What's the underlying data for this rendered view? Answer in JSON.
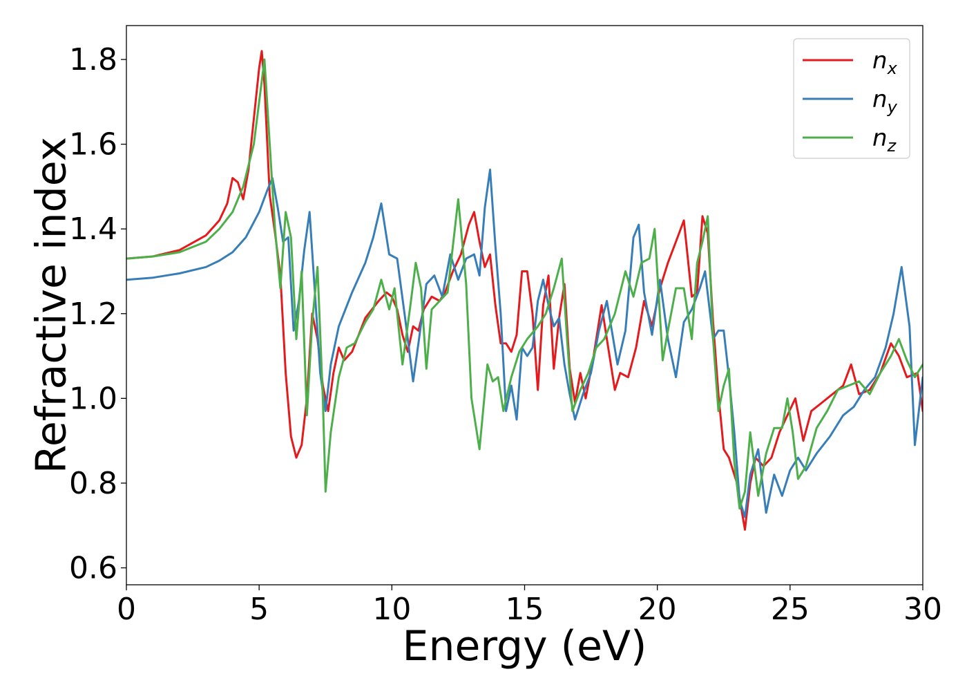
{
  "chart_data": {
    "type": "line",
    "title": "",
    "xlabel": "Energy (eV)",
    "ylabel": "Refractive index",
    "xlim": [
      0,
      30
    ],
    "ylim": [
      0.56,
      1.88
    ],
    "xticks": [
      0,
      5,
      10,
      15,
      20,
      25,
      30
    ],
    "yticks": [
      0.6,
      0.8,
      1.0,
      1.2,
      1.4,
      1.6,
      1.8
    ],
    "xtick_labels": [
      "0",
      "5",
      "10",
      "15",
      "20",
      "25",
      "30"
    ],
    "ytick_labels": [
      "0.6",
      "0.8",
      "1.0",
      "1.2",
      "1.4",
      "1.6",
      "1.8"
    ],
    "grid": false,
    "legend_position": "top-right",
    "series": [
      {
        "name_base": "n",
        "name_sub": "x",
        "color": "#e41a1c",
        "points": [
          [
            0,
            1.33
          ],
          [
            1,
            1.335
          ],
          [
            2,
            1.35
          ],
          [
            3,
            1.385
          ],
          [
            3.5,
            1.42
          ],
          [
            3.8,
            1.46
          ],
          [
            4.0,
            1.52
          ],
          [
            4.2,
            1.51
          ],
          [
            4.4,
            1.47
          ],
          [
            4.6,
            1.54
          ],
          [
            4.8,
            1.66
          ],
          [
            5.0,
            1.78
          ],
          [
            5.1,
            1.82
          ],
          [
            5.2,
            1.74
          ],
          [
            5.4,
            1.48
          ],
          [
            5.6,
            1.39
          ],
          [
            5.8,
            1.29
          ],
          [
            6.0,
            1.06
          ],
          [
            6.2,
            0.91
          ],
          [
            6.4,
            0.86
          ],
          [
            6.6,
            0.89
          ],
          [
            6.8,
            1.0
          ],
          [
            7.0,
            1.2
          ],
          [
            7.2,
            1.14
          ],
          [
            7.4,
            1.03
          ],
          [
            7.6,
            0.97
          ],
          [
            7.8,
            1.06
          ],
          [
            8.0,
            1.12
          ],
          [
            8.2,
            1.09
          ],
          [
            8.5,
            1.11
          ],
          [
            9.0,
            1.19
          ],
          [
            9.5,
            1.23
          ],
          [
            9.8,
            1.25
          ],
          [
            10.0,
            1.24
          ],
          [
            10.2,
            1.21
          ],
          [
            10.4,
            1.15
          ],
          [
            10.6,
            1.11
          ],
          [
            10.8,
            1.17
          ],
          [
            11.0,
            1.16
          ],
          [
            11.2,
            1.21
          ],
          [
            11.5,
            1.24
          ],
          [
            11.8,
            1.23
          ],
          [
            12.0,
            1.25
          ],
          [
            12.3,
            1.3
          ],
          [
            12.6,
            1.34
          ],
          [
            12.9,
            1.41
          ],
          [
            13.1,
            1.44
          ],
          [
            13.3,
            1.37
          ],
          [
            13.5,
            1.31
          ],
          [
            13.7,
            1.34
          ],
          [
            13.9,
            1.22
          ],
          [
            14.1,
            1.13
          ],
          [
            14.3,
            1.13
          ],
          [
            14.5,
            1.11
          ],
          [
            14.7,
            1.15
          ],
          [
            14.9,
            1.3
          ],
          [
            15.1,
            1.3
          ],
          [
            15.3,
            1.2
          ],
          [
            15.5,
            1.02
          ],
          [
            15.7,
            1.22
          ],
          [
            15.9,
            1.29
          ],
          [
            16.1,
            1.07
          ],
          [
            16.3,
            1.19
          ],
          [
            16.5,
            1.27
          ],
          [
            16.7,
            1.07
          ],
          [
            16.9,
            0.99
          ],
          [
            17.1,
            1.06
          ],
          [
            17.3,
            1.0
          ],
          [
            17.6,
            1.1
          ],
          [
            17.9,
            1.22
          ],
          [
            18.1,
            1.14
          ],
          [
            18.4,
            1.02
          ],
          [
            18.6,
            1.06
          ],
          [
            18.9,
            1.05
          ],
          [
            19.2,
            1.12
          ],
          [
            19.5,
            1.23
          ],
          [
            19.8,
            1.17
          ],
          [
            20.1,
            1.26
          ],
          [
            20.4,
            1.32
          ],
          [
            20.7,
            1.37
          ],
          [
            21.0,
            1.42
          ],
          [
            21.3,
            1.24
          ],
          [
            21.5,
            1.25
          ],
          [
            21.7,
            1.43
          ],
          [
            21.9,
            1.39
          ],
          [
            22.1,
            1.18
          ],
          [
            22.3,
            1.01
          ],
          [
            22.5,
            0.88
          ],
          [
            22.7,
            0.86
          ],
          [
            23.0,
            0.8
          ],
          [
            23.3,
            0.69
          ],
          [
            23.5,
            0.8
          ],
          [
            23.7,
            0.86
          ],
          [
            24.0,
            0.84
          ],
          [
            24.3,
            0.86
          ],
          [
            24.6,
            0.92
          ],
          [
            24.9,
            0.96
          ],
          [
            25.2,
            1.0
          ],
          [
            25.5,
            0.9
          ],
          [
            25.8,
            0.97
          ],
          [
            26.2,
            0.99
          ],
          [
            26.6,
            1.01
          ],
          [
            27.0,
            1.03
          ],
          [
            27.3,
            1.08
          ],
          [
            27.6,
            1.01
          ],
          [
            28.0,
            1.02
          ],
          [
            28.4,
            1.06
          ],
          [
            28.8,
            1.13
          ],
          [
            29.1,
            1.1
          ],
          [
            29.4,
            1.05
          ],
          [
            29.8,
            1.06
          ],
          [
            30.0,
            0.97
          ]
        ]
      },
      {
        "name_base": "n",
        "name_sub": "y",
        "color": "#377eb8",
        "points": [
          [
            0,
            1.28
          ],
          [
            1,
            1.285
          ],
          [
            2,
            1.295
          ],
          [
            3,
            1.31
          ],
          [
            3.5,
            1.325
          ],
          [
            4.0,
            1.345
          ],
          [
            4.5,
            1.38
          ],
          [
            5.0,
            1.44
          ],
          [
            5.3,
            1.49
          ],
          [
            5.5,
            1.52
          ],
          [
            5.7,
            1.45
          ],
          [
            5.9,
            1.37
          ],
          [
            6.1,
            1.38
          ],
          [
            6.3,
            1.16
          ],
          [
            6.5,
            1.23
          ],
          [
            6.7,
            1.35
          ],
          [
            6.9,
            1.44
          ],
          [
            7.1,
            1.25
          ],
          [
            7.3,
            1.06
          ],
          [
            7.5,
            0.97
          ],
          [
            7.7,
            1.08
          ],
          [
            8.0,
            1.17
          ],
          [
            8.5,
            1.25
          ],
          [
            9.0,
            1.32
          ],
          [
            9.3,
            1.38
          ],
          [
            9.6,
            1.46
          ],
          [
            9.9,
            1.34
          ],
          [
            10.2,
            1.33
          ],
          [
            10.5,
            1.19
          ],
          [
            10.8,
            1.04
          ],
          [
            11.0,
            1.13
          ],
          [
            11.3,
            1.27
          ],
          [
            11.6,
            1.29
          ],
          [
            11.9,
            1.24
          ],
          [
            12.2,
            1.34
          ],
          [
            12.5,
            1.28
          ],
          [
            12.8,
            1.33
          ],
          [
            13.1,
            1.34
          ],
          [
            13.3,
            1.29
          ],
          [
            13.5,
            1.45
          ],
          [
            13.7,
            1.54
          ],
          [
            13.9,
            1.36
          ],
          [
            14.1,
            1.2
          ],
          [
            14.3,
            0.97
          ],
          [
            14.5,
            1.03
          ],
          [
            14.7,
            0.95
          ],
          [
            14.9,
            1.12
          ],
          [
            15.1,
            1.1
          ],
          [
            15.3,
            1.12
          ],
          [
            15.5,
            1.23
          ],
          [
            15.7,
            1.28
          ],
          [
            15.9,
            1.22
          ],
          [
            16.1,
            1.17
          ],
          [
            16.3,
            1.19
          ],
          [
            16.5,
            1.08
          ],
          [
            16.7,
            1.01
          ],
          [
            16.9,
            0.95
          ],
          [
            17.2,
            1.01
          ],
          [
            17.5,
            1.06
          ],
          [
            17.8,
            1.16
          ],
          [
            18.1,
            1.23
          ],
          [
            18.5,
            1.08
          ],
          [
            18.8,
            1.16
          ],
          [
            19.1,
            1.38
          ],
          [
            19.3,
            1.41
          ],
          [
            19.5,
            1.25
          ],
          [
            19.8,
            1.15
          ],
          [
            20.1,
            1.28
          ],
          [
            20.4,
            1.14
          ],
          [
            20.7,
            1.05
          ],
          [
            21.0,
            1.18
          ],
          [
            21.3,
            1.21
          ],
          [
            21.6,
            1.26
          ],
          [
            21.8,
            1.3
          ],
          [
            22.1,
            1.14
          ],
          [
            22.3,
            1.16
          ],
          [
            22.5,
            1.16
          ],
          [
            22.7,
            1.05
          ],
          [
            22.9,
            0.92
          ],
          [
            23.1,
            0.76
          ],
          [
            23.3,
            0.72
          ],
          [
            23.5,
            0.82
          ],
          [
            23.8,
            0.88
          ],
          [
            24.1,
            0.73
          ],
          [
            24.4,
            0.82
          ],
          [
            24.7,
            0.77
          ],
          [
            25.0,
            0.83
          ],
          [
            25.3,
            0.86
          ],
          [
            25.6,
            0.83
          ],
          [
            26.0,
            0.87
          ],
          [
            26.5,
            0.91
          ],
          [
            27.0,
            0.96
          ],
          [
            27.4,
            0.98
          ],
          [
            27.8,
            1.02
          ],
          [
            28.2,
            1.05
          ],
          [
            28.6,
            1.12
          ],
          [
            28.9,
            1.2
          ],
          [
            29.2,
            1.31
          ],
          [
            29.5,
            1.17
          ],
          [
            29.7,
            0.89
          ],
          [
            30.0,
            1.05
          ]
        ]
      },
      {
        "name_base": "n",
        "name_sub": "z",
        "color": "#4daf4a",
        "points": [
          [
            0,
            1.33
          ],
          [
            1,
            1.335
          ],
          [
            2,
            1.345
          ],
          [
            3,
            1.37
          ],
          [
            3.5,
            1.4
          ],
          [
            4.0,
            1.44
          ],
          [
            4.4,
            1.5
          ],
          [
            4.8,
            1.6
          ],
          [
            5.0,
            1.7
          ],
          [
            5.2,
            1.8
          ],
          [
            5.4,
            1.6
          ],
          [
            5.6,
            1.4
          ],
          [
            5.8,
            1.26
          ],
          [
            6.0,
            1.44
          ],
          [
            6.2,
            1.38
          ],
          [
            6.4,
            1.14
          ],
          [
            6.6,
            1.3
          ],
          [
            6.8,
            0.96
          ],
          [
            7.0,
            1.18
          ],
          [
            7.2,
            1.31
          ],
          [
            7.4,
            1.0
          ],
          [
            7.5,
            0.78
          ],
          [
            7.7,
            0.92
          ],
          [
            8.0,
            1.05
          ],
          [
            8.3,
            1.12
          ],
          [
            8.6,
            1.13
          ],
          [
            9.0,
            1.18
          ],
          [
            9.3,
            1.21
          ],
          [
            9.6,
            1.28
          ],
          [
            9.9,
            1.21
          ],
          [
            10.1,
            1.26
          ],
          [
            10.4,
            1.08
          ],
          [
            10.7,
            1.22
          ],
          [
            10.9,
            1.32
          ],
          [
            11.1,
            1.26
          ],
          [
            11.3,
            1.07
          ],
          [
            11.5,
            1.21
          ],
          [
            11.8,
            1.23
          ],
          [
            12.1,
            1.25
          ],
          [
            12.5,
            1.47
          ],
          [
            12.8,
            1.27
          ],
          [
            13.0,
            1.0
          ],
          [
            13.3,
            0.88
          ],
          [
            13.6,
            1.08
          ],
          [
            13.8,
            1.04
          ],
          [
            14.0,
            1.05
          ],
          [
            14.2,
            0.97
          ],
          [
            14.5,
            1.05
          ],
          [
            14.8,
            1.11
          ],
          [
            15.1,
            1.14
          ],
          [
            15.5,
            1.17
          ],
          [
            15.8,
            1.2
          ],
          [
            16.1,
            1.26
          ],
          [
            16.4,
            1.33
          ],
          [
            16.6,
            1.14
          ],
          [
            16.8,
            0.97
          ],
          [
            17.1,
            1.02
          ],
          [
            17.4,
            1.06
          ],
          [
            17.7,
            1.12
          ],
          [
            18.0,
            1.14
          ],
          [
            18.4,
            1.2
          ],
          [
            18.8,
            1.3
          ],
          [
            19.1,
            1.24
          ],
          [
            19.4,
            1.32
          ],
          [
            19.7,
            1.33
          ],
          [
            19.9,
            1.4
          ],
          [
            20.2,
            1.09
          ],
          [
            20.4,
            1.16
          ],
          [
            20.7,
            1.26
          ],
          [
            21.0,
            1.26
          ],
          [
            21.3,
            1.14
          ],
          [
            21.5,
            1.32
          ],
          [
            21.7,
            1.37
          ],
          [
            21.9,
            1.43
          ],
          [
            22.1,
            1.14
          ],
          [
            22.3,
            0.97
          ],
          [
            22.5,
            1.03
          ],
          [
            22.7,
            1.07
          ],
          [
            22.9,
            0.85
          ],
          [
            23.1,
            0.74
          ],
          [
            23.3,
            0.78
          ],
          [
            23.5,
            0.92
          ],
          [
            23.8,
            0.77
          ],
          [
            24.1,
            0.87
          ],
          [
            24.4,
            0.93
          ],
          [
            24.7,
            0.93
          ],
          [
            24.9,
            1.0
          ],
          [
            25.1,
            0.92
          ],
          [
            25.3,
            0.81
          ],
          [
            25.6,
            0.84
          ],
          [
            26.0,
            0.93
          ],
          [
            26.4,
            0.97
          ],
          [
            26.8,
            1.02
          ],
          [
            27.2,
            1.03
          ],
          [
            27.6,
            1.04
          ],
          [
            28.0,
            1.01
          ],
          [
            28.4,
            1.06
          ],
          [
            28.8,
            1.1
          ],
          [
            29.1,
            1.14
          ],
          [
            29.4,
            1.09
          ],
          [
            29.7,
            1.05
          ],
          [
            30.0,
            1.08
          ]
        ]
      }
    ]
  }
}
